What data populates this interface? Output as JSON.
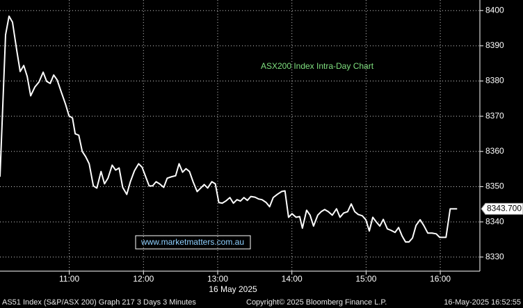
{
  "chart_data": {
    "type": "line",
    "title": "ASX200 Index Intra-Day Chart",
    "x_label": "16 May 2025",
    "watermark": "www.marketmatters.com.au",
    "color": "#ffffff",
    "grid": true,
    "x": [
      604,
      608.5,
      611.3,
      614.1,
      617.5,
      620.3,
      623.2,
      626,
      628.8,
      632.2,
      635.5,
      638.9,
      641.7,
      644.6,
      647.4,
      650.2,
      653.6,
      657,
      659.8,
      662.6,
      664.8,
      667.7,
      670.5,
      673.3,
      676.1,
      679.5,
      682.3,
      685.7,
      688.5,
      691.3,
      694.7,
      697.5,
      700.3,
      703.2,
      706.5,
      709.4,
      712.7,
      716.1,
      718.9,
      721.8,
      724.6,
      727.4,
      730.2,
      733,
      736.4,
      739.2,
      742.6,
      746,
      748.8,
      751.6,
      754.4,
      757.2,
      760.1,
      763.4,
      766.3,
      769.1,
      771.9,
      775.3,
      778.1,
      780.9,
      783.7,
      786.5,
      789.9,
      792.7,
      795.6,
      798.4,
      801.2,
      804,
      806.8,
      810.2,
      813,
      815.8,
      819.2,
      822,
      824.9,
      828.2,
      831.6,
      834.4,
      837.3,
      840.1,
      843.4,
      846.3,
      848.5,
      851.9,
      854.7,
      857.5,
      860.9,
      863.7,
      866.5,
      869.4,
      872.7,
      876.1,
      878.9,
      881.8,
      885.1,
      888,
      890.8,
      893.6,
      897,
      899.8,
      902.6,
      905.4,
      908.2,
      911.1,
      913.9,
      917.2,
      920.1,
      923.4,
      926.3,
      929.1,
      931.9,
      934.7,
      937.5,
      940.4,
      943.7,
      946.6,
      949.9,
      953.3,
      956.7,
      959.5,
      964.6,
      968,
      973.6
    ],
    "values": [
      8352.8,
      8393.1,
      8398.4,
      8396.7,
      8388.8,
      8382.7,
      8384.4,
      8381.3,
      8375.8,
      8378.3,
      8379.7,
      8382.5,
      8379.9,
      8379.3,
      8381.7,
      8380.3,
      8376.8,
      8373.4,
      8370.1,
      8369.5,
      8365,
      8364.6,
      8360,
      8358.5,
      8356.5,
      8350.2,
      8349.6,
      8354.3,
      8350.8,
      8352.4,
      8356.1,
      8354.7,
      8355.3,
      8349.8,
      8347.8,
      8351.4,
      8354.5,
      8356.5,
      8355.5,
      8352.8,
      8350.2,
      8350.2,
      8351.4,
      8350.8,
      8349.8,
      8352.4,
      8352.8,
      8353.1,
      8356.5,
      8354.1,
      8355.1,
      8354.3,
      8351.4,
      8348.6,
      8349.6,
      8350.6,
      8349.6,
      8351.4,
      8350.8,
      8345.5,
      8345.3,
      8345.9,
      8346.9,
      8345.3,
      8346.3,
      8345.9,
      8346.9,
      8346.1,
      8347.2,
      8347,
      8346.5,
      8346.3,
      8345.5,
      8344.3,
      8346.9,
      8347.8,
      8348.6,
      8348.8,
      8341.3,
      8342.3,
      8341.3,
      8341.5,
      8338.2,
      8343.3,
      8341.9,
      8338.8,
      8341.9,
      8342.9,
      8343.5,
      8342.9,
      8341.9,
      8343.7,
      8341.3,
      8342.5,
      8342.9,
      8345.1,
      8342.9,
      8342.1,
      8341.7,
      8340.6,
      8337.4,
      8341.3,
      8340,
      8338.8,
      8340.7,
      8338,
      8337.6,
      8337,
      8338.4,
      8336,
      8334.3,
      8334.3,
      8335.4,
      8339,
      8340.6,
      8339,
      8336.8,
      8336.8,
      8336.6,
      8335.6,
      8335.6,
      8343.7,
      8343.7
    ],
    "last_price": {
      "value": 8343.7,
      "label": "8343.700"
    },
    "xlim": [
      604,
      992
    ],
    "ylim": [
      8326,
      8403
    ],
    "xticks": [
      {
        "value": 660,
        "label": "11:00"
      },
      {
        "value": 720,
        "label": "12:00"
      },
      {
        "value": 780,
        "label": "13:00"
      },
      {
        "value": 840,
        "label": "14:00"
      },
      {
        "value": 900,
        "label": "15:00"
      },
      {
        "value": 960,
        "label": "16:00"
      }
    ],
    "yticks": [
      8330,
      8340,
      8350,
      8360,
      8370,
      8380,
      8390,
      8400
    ]
  },
  "footer": [
    "AS51 Index (S&P/ASX 200) Graph 217 3 Days 3 Minutes",
    "Copyright© 2025 Bloomberg Finance L.P.",
    "16-May-2025 16:52:55"
  ]
}
